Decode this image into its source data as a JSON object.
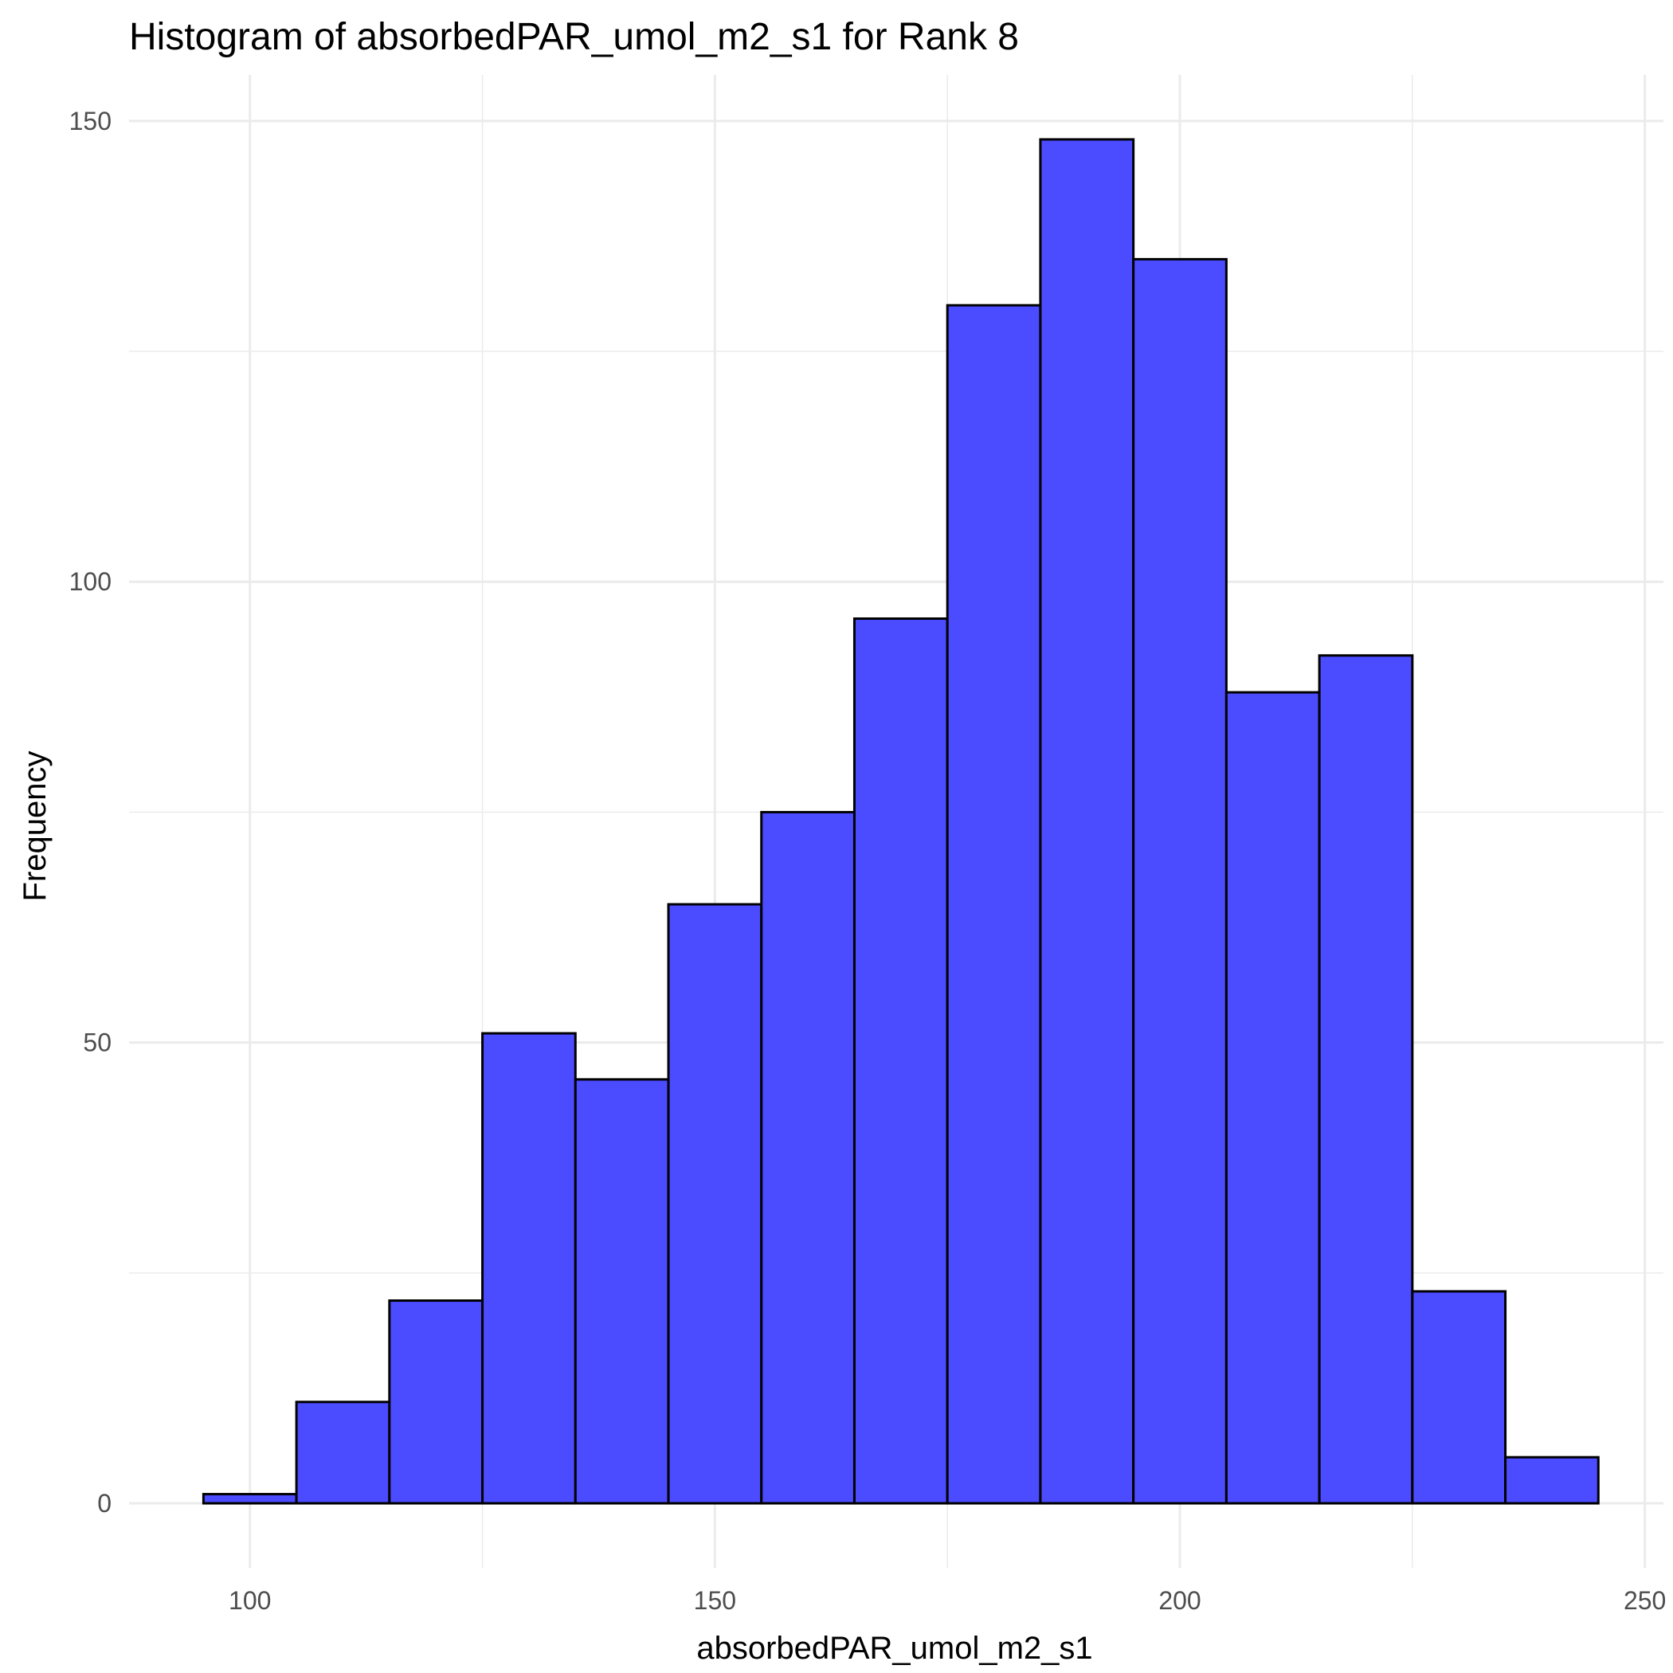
{
  "chart_data": {
    "type": "bar",
    "title": "Histogram of absorbedPAR_umol_m2_s1 for Rank 8",
    "xlabel": "absorbedPAR_umol_m2_s1",
    "ylabel": "Frequency",
    "xlim": [
      87,
      252
    ],
    "ylim": [
      -7,
      155
    ],
    "x_ticks": [
      100,
      150,
      200,
      250
    ],
    "y_ticks": [
      0,
      50,
      100,
      150
    ],
    "bin_width": 10,
    "bins": [
      {
        "start": 95,
        "end": 105,
        "count": 1
      },
      {
        "start": 105,
        "end": 115,
        "count": 11
      },
      {
        "start": 115,
        "end": 125,
        "count": 22
      },
      {
        "start": 125,
        "end": 135,
        "count": 51
      },
      {
        "start": 135,
        "end": 145,
        "count": 46
      },
      {
        "start": 145,
        "end": 155,
        "count": 65
      },
      {
        "start": 155,
        "end": 165,
        "count": 75
      },
      {
        "start": 165,
        "end": 175,
        "count": 96
      },
      {
        "start": 175,
        "end": 185,
        "count": 130
      },
      {
        "start": 185,
        "end": 195,
        "count": 148
      },
      {
        "start": 195,
        "end": 205,
        "count": 135
      },
      {
        "start": 205,
        "end": 215,
        "count": 88
      },
      {
        "start": 215,
        "end": 225,
        "count": 92
      },
      {
        "start": 225,
        "end": 235,
        "count": 23
      },
      {
        "start": 235,
        "end": 245,
        "count": 5
      }
    ],
    "fill_color": "#4b4bff",
    "edge_color": "#000000",
    "grid": true,
    "legend": "none"
  }
}
